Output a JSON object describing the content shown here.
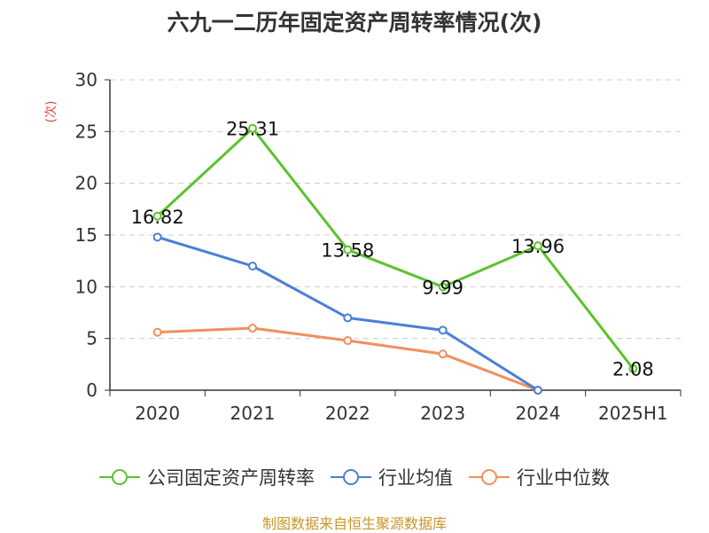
{
  "chart_data": {
    "type": "line",
    "title": "六九一二历年固定资产周转率情况(次)",
    "ylabel": "(次)",
    "xlabel": "",
    "categories": [
      "2020",
      "2021",
      "2022",
      "2023",
      "2024",
      "2025H1"
    ],
    "ylim": [
      0,
      30
    ],
    "yticks": [
      0,
      5,
      10,
      15,
      20,
      25,
      30
    ],
    "grid": true,
    "legend_position": "bottom",
    "series": [
      {
        "name": "公司固定资产周转率",
        "color": "#5cc22d",
        "values": [
          16.82,
          25.31,
          13.58,
          9.99,
          13.96,
          2.08
        ],
        "labels": [
          "16.82",
          "25.31",
          "13.58",
          "9.99",
          "13.96",
          "2.08"
        ]
      },
      {
        "name": "行业均值",
        "color": "#4b7fd6",
        "values": [
          14.8,
          12.0,
          7.0,
          5.8,
          0,
          null
        ]
      },
      {
        "name": "行业中位数",
        "color": "#f28f5d",
        "values": [
          5.6,
          6.0,
          4.8,
          3.5,
          0,
          null
        ]
      }
    ]
  },
  "source": "制图数据来自恒生聚源数据库"
}
